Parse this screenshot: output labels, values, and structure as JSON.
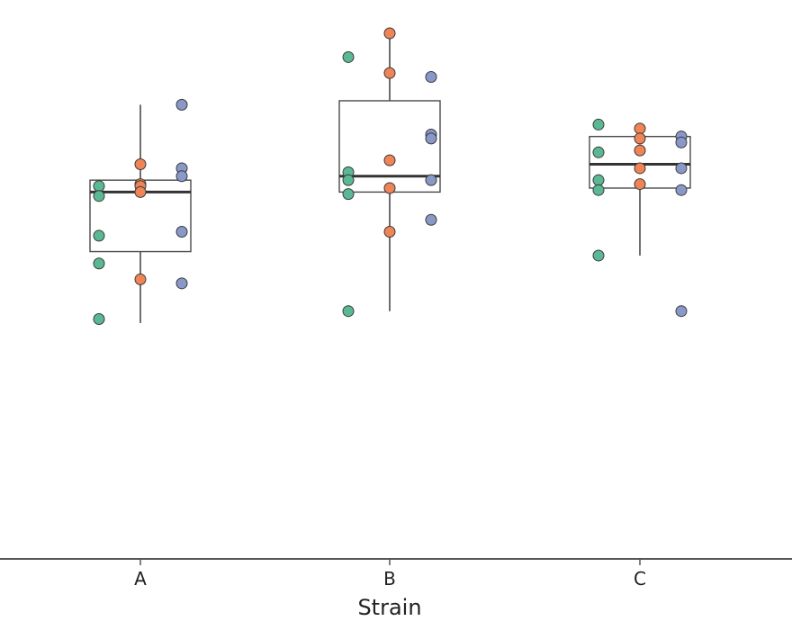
{
  "chart_data": {
    "type": "box",
    "xlabel": "Strain",
    "ylabel": "",
    "categories": [
      "A",
      "B",
      "C"
    ],
    "ylim": [
      0,
      1
    ],
    "axis_line": "bottom",
    "grid": false,
    "boxes": [
      {
        "category": "A",
        "whisker_low": 0.27,
        "q1": 0.45,
        "median": 0.6,
        "q3": 0.63,
        "whisker_high": 0.82
      },
      {
        "category": "B",
        "whisker_low": 0.3,
        "q1": 0.6,
        "median": 0.64,
        "q3": 0.83,
        "whisker_high": 1.0
      },
      {
        "category": "C",
        "whisker_low": 0.44,
        "q1": 0.61,
        "median": 0.67,
        "q3": 0.74,
        "whisker_high": 0.74
      }
    ],
    "series": [
      {
        "color": "#5ab894",
        "points": [
          {
            "category": "A",
            "y": 0.615
          },
          {
            "category": "A",
            "y": 0.59
          },
          {
            "category": "A",
            "y": 0.49
          },
          {
            "category": "A",
            "y": 0.42
          },
          {
            "category": "A",
            "y": 0.28
          },
          {
            "category": "B",
            "y": 0.94
          },
          {
            "category": "B",
            "y": 0.65
          },
          {
            "category": "B",
            "y": 0.63
          },
          {
            "category": "B",
            "y": 0.595
          },
          {
            "category": "B",
            "y": 0.3
          },
          {
            "category": "C",
            "y": 0.77
          },
          {
            "category": "C",
            "y": 0.7
          },
          {
            "category": "C",
            "y": 0.63
          },
          {
            "category": "C",
            "y": 0.605
          },
          {
            "category": "C",
            "y": 0.44
          }
        ]
      },
      {
        "color": "#ef8456",
        "points": [
          {
            "category": "A",
            "y": 0.67
          },
          {
            "category": "A",
            "y": 0.62
          },
          {
            "category": "A",
            "y": 0.615
          },
          {
            "category": "A",
            "y": 0.6
          },
          {
            "category": "A",
            "y": 0.38
          },
          {
            "category": "B",
            "y": 1.0
          },
          {
            "category": "B",
            "y": 0.9
          },
          {
            "category": "B",
            "y": 0.68
          },
          {
            "category": "B",
            "y": 0.61
          },
          {
            "category": "B",
            "y": 0.5
          },
          {
            "category": "C",
            "y": 0.76
          },
          {
            "category": "C",
            "y": 0.735
          },
          {
            "category": "C",
            "y": 0.705
          },
          {
            "category": "C",
            "y": 0.66
          },
          {
            "category": "C",
            "y": 0.62
          }
        ]
      },
      {
        "color": "#8898c8",
        "points": [
          {
            "category": "A",
            "y": 0.82
          },
          {
            "category": "A",
            "y": 0.66
          },
          {
            "category": "A",
            "y": 0.64
          },
          {
            "category": "A",
            "y": 0.5
          },
          {
            "category": "A",
            "y": 0.37
          },
          {
            "category": "B",
            "y": 0.89
          },
          {
            "category": "B",
            "y": 0.745
          },
          {
            "category": "B",
            "y": 0.735
          },
          {
            "category": "B",
            "y": 0.63
          },
          {
            "category": "B",
            "y": 0.53
          },
          {
            "category": "C",
            "y": 0.74
          },
          {
            "category": "C",
            "y": 0.725
          },
          {
            "category": "C",
            "y": 0.66
          },
          {
            "category": "C",
            "y": 0.605
          },
          {
            "category": "C",
            "y": 0.3
          }
        ]
      }
    ],
    "colors": {
      "axis": "#555555",
      "box_stroke": "#4a4a4a",
      "median": "#333333",
      "point_stroke": "#3a3a3a"
    }
  }
}
